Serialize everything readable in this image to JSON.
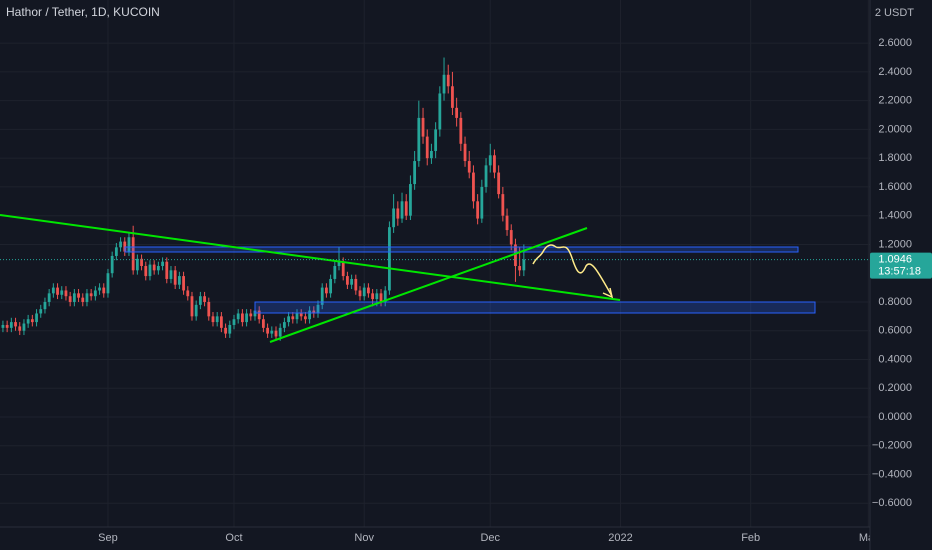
{
  "chart_data": {
    "type": "candlestick",
    "title": "Hathor / Tether, 1D, KUCOIN",
    "currency_label": "2 USDT",
    "up_color": "#26a69a",
    "down_color": "#ef5350",
    "grid": true,
    "open": [
      0.62,
      0.64,
      0.62,
      0.66,
      0.63,
      0.6,
      0.65,
      0.68,
      0.66,
      0.72,
      0.75,
      0.8,
      0.86,
      0.9,
      0.85,
      0.88,
      0.84,
      0.8,
      0.86,
      0.83,
      0.8,
      0.86,
      0.84,
      0.88,
      0.9,
      0.86,
      1.0,
      1.12,
      1.18,
      1.22,
      1.15,
      1.25,
      1.02,
      1.1,
      1.05,
      0.98,
      1.06,
      1.02,
      1.05,
      1.08,
      0.96,
      1.02,
      0.92,
      0.98,
      0.88,
      0.84,
      0.7,
      0.78,
      0.84,
      0.8,
      0.7,
      0.66,
      0.7,
      0.62,
      0.58,
      0.64,
      0.68,
      0.72,
      0.66,
      0.72,
      0.7,
      0.74,
      0.68,
      0.62,
      0.58,
      0.6,
      0.56,
      0.62,
      0.66,
      0.7,
      0.68,
      0.72,
      0.7,
      0.68,
      0.74,
      0.72,
      0.78,
      0.9,
      0.86,
      0.96,
      1.05,
      1.08,
      0.98,
      0.92,
      0.96,
      0.88,
      0.84,
      0.9,
      0.86,
      0.82,
      0.86,
      0.8,
      0.88,
      1.32,
      1.45,
      1.38,
      1.5,
      1.4,
      1.62,
      1.78,
      2.08,
      1.95,
      1.8,
      1.85,
      2.0,
      2.25,
      2.38,
      2.3,
      2.15,
      2.08,
      1.9,
      1.78,
      1.7,
      1.5,
      1.38,
      1.6,
      1.75,
      1.82,
      1.7,
      1.55,
      1.4,
      1.3,
      1.2,
      1.05,
      1.02
    ],
    "high": [
      0.67,
      0.67,
      0.69,
      0.69,
      0.66,
      0.68,
      0.71,
      0.71,
      0.75,
      0.78,
      0.83,
      0.89,
      0.93,
      0.93,
      0.91,
      0.91,
      0.87,
      0.89,
      0.89,
      0.86,
      0.89,
      0.89,
      0.91,
      0.93,
      0.93,
      1.03,
      1.15,
      1.21,
      1.25,
      1.25,
      1.28,
      1.33,
      1.13,
      1.13,
      1.08,
      1.09,
      1.09,
      1.08,
      1.11,
      1.11,
      1.05,
      1.05,
      1.01,
      1.01,
      0.91,
      0.87,
      0.81,
      0.87,
      0.87,
      0.83,
      0.73,
      0.73,
      0.73,
      0.65,
      0.67,
      0.71,
      0.75,
      0.75,
      0.75,
      0.75,
      0.77,
      0.77,
      0.71,
      0.65,
      0.63,
      0.63,
      0.65,
      0.69,
      0.73,
      0.73,
      0.75,
      0.75,
      0.73,
      0.77,
      0.77,
      0.81,
      0.93,
      0.93,
      0.99,
      1.08,
      1.18,
      1.11,
      1.01,
      0.99,
      0.99,
      0.91,
      0.93,
      0.93,
      0.89,
      0.89,
      0.89,
      0.91,
      1.36,
      1.55,
      1.5,
      1.56,
      1.55,
      1.68,
      1.85,
      2.2,
      2.15,
      2.0,
      1.9,
      2.05,
      2.3,
      2.5,
      2.45,
      2.4,
      2.22,
      2.12,
      1.95,
      1.85,
      1.75,
      1.55,
      1.65,
      1.8,
      1.9,
      1.86,
      1.75,
      1.6,
      1.45,
      1.34,
      1.24,
      1.18,
      1.2
    ],
    "low": [
      0.59,
      0.59,
      0.59,
      0.6,
      0.57,
      0.57,
      0.62,
      0.63,
      0.63,
      0.69,
      0.72,
      0.77,
      0.83,
      0.82,
      0.82,
      0.81,
      0.77,
      0.77,
      0.8,
      0.77,
      0.77,
      0.81,
      0.81,
      0.85,
      0.83,
      0.83,
      0.97,
      1.09,
      1.15,
      1.12,
      1.12,
      0.99,
      0.99,
      1.02,
      0.95,
      0.95,
      0.99,
      0.99,
      1.02,
      0.93,
      0.93,
      0.89,
      0.89,
      0.85,
      0.81,
      0.67,
      0.67,
      0.75,
      0.77,
      0.67,
      0.63,
      0.63,
      0.59,
      0.55,
      0.55,
      0.61,
      0.65,
      0.63,
      0.63,
      0.67,
      0.67,
      0.65,
      0.59,
      0.55,
      0.55,
      0.53,
      0.53,
      0.59,
      0.63,
      0.65,
      0.65,
      0.67,
      0.65,
      0.65,
      0.69,
      0.69,
      0.75,
      0.83,
      0.83,
      0.93,
      1.02,
      0.95,
      0.89,
      0.89,
      0.85,
      0.81,
      0.81,
      0.83,
      0.77,
      0.77,
      0.77,
      0.77,
      0.85,
      1.28,
      1.33,
      1.35,
      1.37,
      1.37,
      1.58,
      1.74,
      1.9,
      1.75,
      1.76,
      1.8,
      1.95,
      2.2,
      2.25,
      2.1,
      2.02,
      1.85,
      1.74,
      1.66,
      1.45,
      1.34,
      1.35,
      1.56,
      1.7,
      1.66,
      1.52,
      1.36,
      1.26,
      1.16,
      0.94,
      0.98,
      0.98
    ],
    "close": [
      0.64,
      0.62,
      0.66,
      0.63,
      0.6,
      0.65,
      0.68,
      0.66,
      0.72,
      0.75,
      0.8,
      0.86,
      0.9,
      0.85,
      0.88,
      0.84,
      0.8,
      0.86,
      0.83,
      0.8,
      0.86,
      0.84,
      0.88,
      0.9,
      0.86,
      1.0,
      1.12,
      1.18,
      1.22,
      1.15,
      1.25,
      1.02,
      1.1,
      1.05,
      0.98,
      1.06,
      1.02,
      1.05,
      1.08,
      0.96,
      1.02,
      0.92,
      0.98,
      0.88,
      0.84,
      0.7,
      0.78,
      0.84,
      0.8,
      0.7,
      0.66,
      0.7,
      0.62,
      0.58,
      0.64,
      0.68,
      0.72,
      0.66,
      0.72,
      0.7,
      0.74,
      0.68,
      0.62,
      0.58,
      0.6,
      0.56,
      0.62,
      0.66,
      0.7,
      0.68,
      0.72,
      0.7,
      0.68,
      0.74,
      0.72,
      0.78,
      0.9,
      0.86,
      0.96,
      1.05,
      1.08,
      0.98,
      0.92,
      0.96,
      0.88,
      0.84,
      0.9,
      0.86,
      0.82,
      0.86,
      0.8,
      0.88,
      1.32,
      1.45,
      1.38,
      1.5,
      1.4,
      1.62,
      1.78,
      2.08,
      1.95,
      1.8,
      1.85,
      2.0,
      2.25,
      2.38,
      2.3,
      2.15,
      2.08,
      1.9,
      1.78,
      1.7,
      1.5,
      1.38,
      1.6,
      1.75,
      1.82,
      1.7,
      1.55,
      1.4,
      1.3,
      1.2,
      1.05,
      1.02,
      1.0946
    ],
    "last_price": {
      "value": 1.0946,
      "label": "1.0946"
    },
    "countdown": "13:57:18",
    "xlim": [
      -0.7,
      206.4
    ],
    "xticks": [
      {
        "value": 25,
        "label": "Sep"
      },
      {
        "value": 55,
        "label": "Oct"
      },
      {
        "value": 86,
        "label": "Nov"
      },
      {
        "value": 116,
        "label": "Dec"
      },
      {
        "value": 147,
        "label": "2022"
      },
      {
        "value": 178,
        "label": "Feb"
      },
      {
        "value": 206,
        "label": "Mar"
      }
    ],
    "ylim": [
      -0.765,
      2.9
    ],
    "yticks": [
      {
        "value": 2.6,
        "label": "2.6000"
      },
      {
        "value": 2.4,
        "label": "2.4000"
      },
      {
        "value": 2.2,
        "label": "2.2000"
      },
      {
        "value": 2.0,
        "label": "2.0000"
      },
      {
        "value": 1.8,
        "label": "1.8000"
      },
      {
        "value": 1.6,
        "label": "1.6000"
      },
      {
        "value": 1.4,
        "label": "1.4000"
      },
      {
        "value": 1.2,
        "label": "1.2000"
      },
      {
        "value": 0.8,
        "label": "0.8000"
      },
      {
        "value": 0.6,
        "label": "0.6000"
      },
      {
        "value": 0.4,
        "label": "0.4000"
      },
      {
        "value": 0.2,
        "label": "0.2000"
      },
      {
        "value": 0,
        "label": "0.0000"
      },
      {
        "value": -0.2,
        "label": "−0.2000"
      },
      {
        "value": -0.4,
        "label": "−0.4000"
      },
      {
        "value": -0.6,
        "label": "−0.6000"
      }
    ]
  }
}
